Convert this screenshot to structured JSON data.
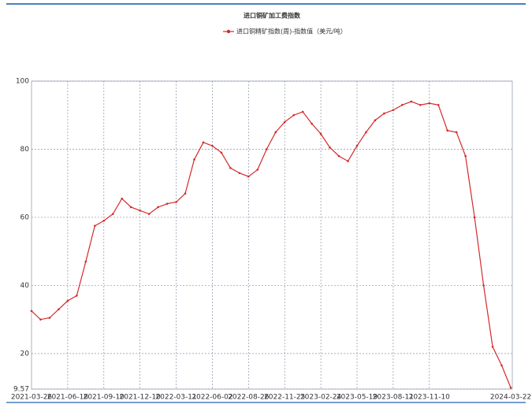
{
  "chart_data": {
    "type": "line",
    "title": "进口铜矿加工费指数",
    "categories": [
      "2021-03-26",
      null,
      null,
      null,
      "2021-06-18",
      null,
      null,
      null,
      "2021-09-10",
      null,
      null,
      null,
      "2021-12-10",
      null,
      null,
      null,
      "2022-03-11",
      null,
      null,
      null,
      "2022-06-02",
      null,
      null,
      null,
      "2022-08-26",
      null,
      null,
      null,
      "2022-11-25",
      null,
      null,
      null,
      "2023-02-24",
      null,
      null,
      null,
      "2023-05-19",
      null,
      null,
      null,
      "2023-08-11",
      null,
      null,
      null,
      "2023-11-10",
      null,
      null,
      null,
      null,
      null,
      null,
      null,
      null,
      "2024-03-22"
    ],
    "series": [
      {
        "name": "进口铜精矿指数(周)-指数值（美元/吨）",
        "color": "#d42a2a",
        "values": [
          32.5,
          30,
          30.5,
          33,
          35.5,
          37,
          47,
          57.5,
          59,
          61,
          65.5,
          63,
          62,
          61,
          63,
          64,
          64.5,
          67,
          77,
          82,
          81,
          79,
          74.5,
          73,
          72,
          74,
          80,
          85,
          88,
          90,
          91,
          87.5,
          84.5,
          80.5,
          78,
          76.5,
          81,
          85,
          88.5,
          90.5,
          91.5,
          93,
          94,
          93,
          93.5,
          93,
          85.5,
          85,
          78,
          60,
          40,
          22,
          16.5,
          10
        ]
      }
    ],
    "ylim": [
      9.57,
      100
    ],
    "yticks": [
      9.57,
      20,
      40,
      60,
      80,
      100
    ],
    "grid": true
  }
}
